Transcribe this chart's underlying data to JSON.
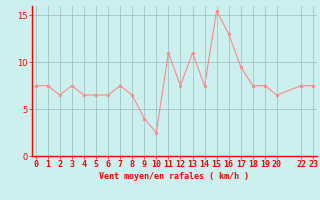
{
  "x": [
    0,
    1,
    2,
    3,
    4,
    5,
    6,
    7,
    8,
    9,
    10,
    11,
    12,
    13,
    14,
    15,
    16,
    17,
    18,
    19,
    20,
    22,
    23
  ],
  "y": [
    7.5,
    7.5,
    6.5,
    7.5,
    6.5,
    6.5,
    6.5,
    7.5,
    6.5,
    4.0,
    2.5,
    11.0,
    7.5,
    11.0,
    7.5,
    15.5,
    13.0,
    9.5,
    7.5,
    7.5,
    6.5,
    7.5,
    7.5
  ],
  "line_color": "#FF8888",
  "marker_color": "#FF8888",
  "bg_color": "#CCF0EE",
  "grid_color": "#99BBBB",
  "axis_line_color": "#FF0000",
  "text_color": "#FF0000",
  "xlabel": "Vent moyen/en rafales ( km/h )",
  "ylim": [
    0,
    16
  ],
  "xlim": [
    -0.3,
    23.3
  ],
  "yticks": [
    0,
    5,
    10,
    15
  ],
  "title_fontsize": 7,
  "axis_fontsize": 6,
  "tick_fontsize": 6
}
